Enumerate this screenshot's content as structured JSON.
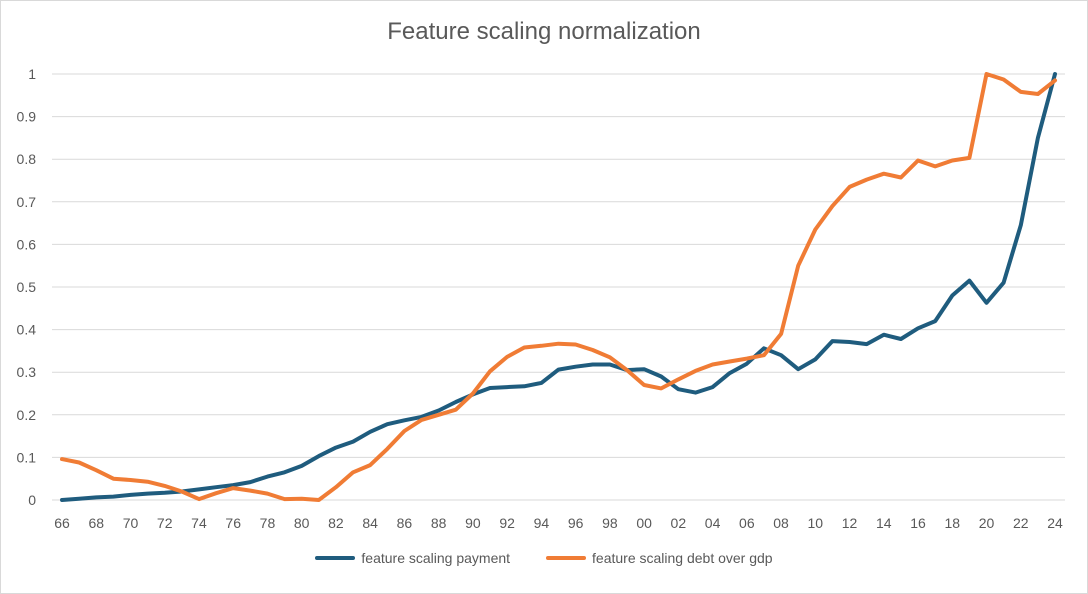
{
  "chart_data": {
    "type": "line",
    "title": "Feature scaling normalization",
    "xlabel": "",
    "ylabel": "",
    "categories": [
      "66",
      "67",
      "68",
      "69",
      "70",
      "71",
      "72",
      "73",
      "74",
      "75",
      "76",
      "77",
      "78",
      "79",
      "80",
      "81",
      "82",
      "83",
      "84",
      "85",
      "86",
      "87",
      "88",
      "89",
      "90",
      "91",
      "92",
      "93",
      "94",
      "95",
      "96",
      "97",
      "98",
      "99",
      "00",
      "01",
      "02",
      "03",
      "04",
      "05",
      "06",
      "07",
      "08",
      "09",
      "10",
      "11",
      "12",
      "13",
      "14",
      "15",
      "16",
      "17",
      "18",
      "19",
      "20",
      "21",
      "22",
      "23",
      "24"
    ],
    "x_tick_labels": [
      "66",
      "68",
      "70",
      "72",
      "74",
      "76",
      "78",
      "80",
      "82",
      "84",
      "86",
      "88",
      "90",
      "92",
      "94",
      "96",
      "98",
      "00",
      "02",
      "04",
      "06",
      "08",
      "10",
      "12",
      "14",
      "16",
      "18",
      "20",
      "22",
      "24"
    ],
    "ylim": [
      0,
      1
    ],
    "y_ticks": [
      0,
      0.1,
      0.2,
      0.3,
      0.4,
      0.5,
      0.6,
      0.7,
      0.8,
      0.9,
      1
    ],
    "y_tick_labels": [
      "0",
      "0.1",
      "0.2",
      "0.3",
      "0.4",
      "0.5",
      "0.6",
      "0.7",
      "0.8",
      "0.9",
      "1"
    ],
    "grid": "horizontal",
    "legend_position": "bottom",
    "series": [
      {
        "name": "feature scaling payment",
        "color": "#1f5c7e",
        "values": [
          0.0,
          0.003,
          0.006,
          0.008,
          0.012,
          0.015,
          0.017,
          0.02,
          0.025,
          0.03,
          0.035,
          0.042,
          0.055,
          0.065,
          0.08,
          0.103,
          0.123,
          0.137,
          0.16,
          0.178,
          0.187,
          0.195,
          0.21,
          0.23,
          0.248,
          0.263,
          0.265,
          0.267,
          0.275,
          0.306,
          0.313,
          0.318,
          0.318,
          0.305,
          0.307,
          0.29,
          0.26,
          0.252,
          0.265,
          0.298,
          0.32,
          0.356,
          0.34,
          0.307,
          0.33,
          0.373,
          0.371,
          0.366,
          0.388,
          0.378,
          0.403,
          0.42,
          0.48,
          0.515,
          0.463,
          0.51,
          0.645,
          0.85,
          1.0
        ]
      },
      {
        "name": "feature scaling debt over gdp",
        "color": "#f07c35",
        "values": [
          0.096,
          0.088,
          0.07,
          0.05,
          0.047,
          0.043,
          0.033,
          0.02,
          0.002,
          0.016,
          0.028,
          0.022,
          0.015,
          0.002,
          0.003,
          0.0,
          0.03,
          0.065,
          0.082,
          0.12,
          0.162,
          0.188,
          0.2,
          0.212,
          0.25,
          0.302,
          0.336,
          0.358,
          0.362,
          0.367,
          0.365,
          0.352,
          0.335,
          0.305,
          0.27,
          0.262,
          0.283,
          0.303,
          0.318,
          0.325,
          0.332,
          0.34,
          0.39,
          0.55,
          0.635,
          0.69,
          0.735,
          0.752,
          0.766,
          0.757,
          0.797,
          0.783,
          0.797,
          0.803,
          1.0,
          0.987,
          0.958,
          0.953,
          0.985
        ]
      }
    ]
  }
}
